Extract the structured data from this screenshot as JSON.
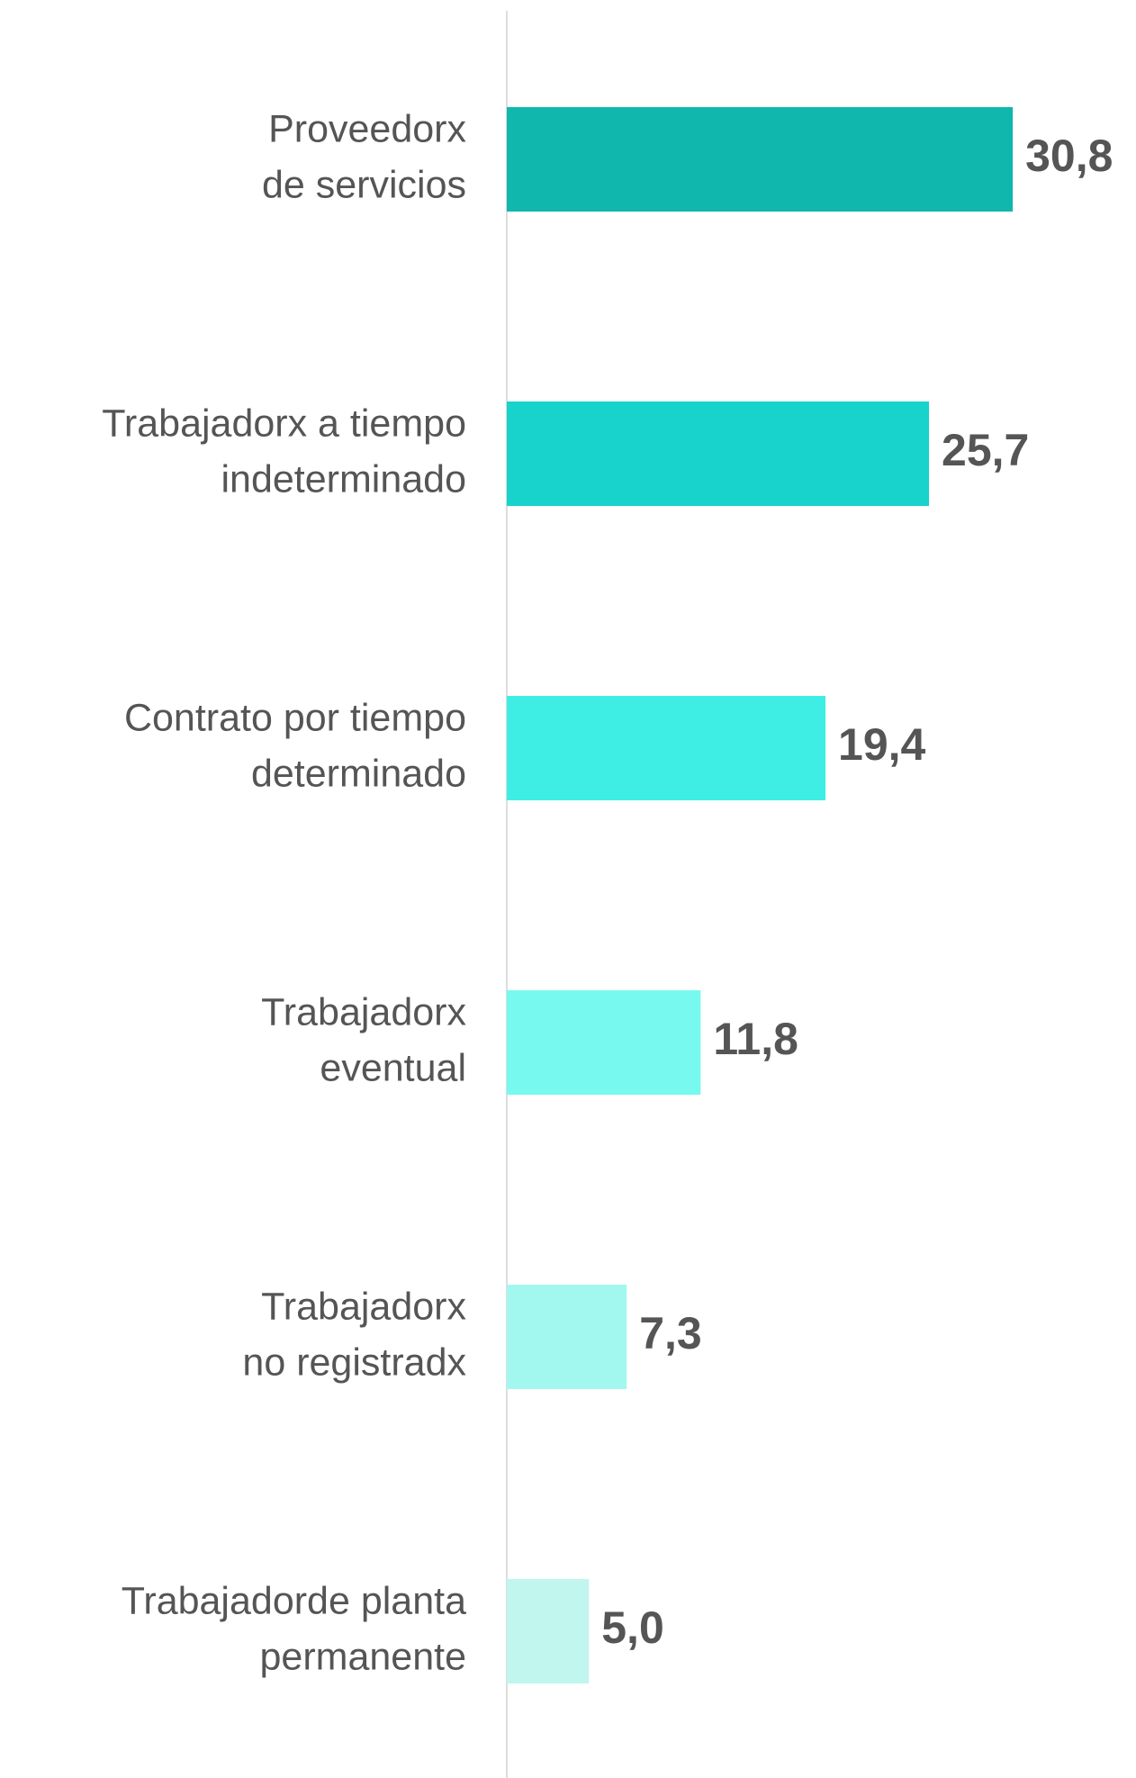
{
  "chart_data": {
    "type": "barh",
    "categories": [
      [
        "Proveedorx",
        "de servicios"
      ],
      [
        "Trabajadorx a tiempo",
        "indeterminado"
      ],
      [
        "Contrato por tiempo",
        "determinado"
      ],
      [
        "Trabajadorx",
        "eventual"
      ],
      [
        "Trabajadorx",
        "no registradx"
      ],
      [
        "Trabajadorde planta",
        "permanente"
      ]
    ],
    "values": [
      30.8,
      25.7,
      19.4,
      11.8,
      7.3,
      5.0
    ],
    "value_labels": [
      "30,8",
      "25,7",
      "19,4",
      "11,8",
      "7,3",
      "5,0"
    ],
    "colors": [
      "#10b7ad",
      "#17d3cc",
      "#3eeee4",
      "#78f9ef",
      "#a2f8ee",
      "#c0f6ee"
    ]
  }
}
